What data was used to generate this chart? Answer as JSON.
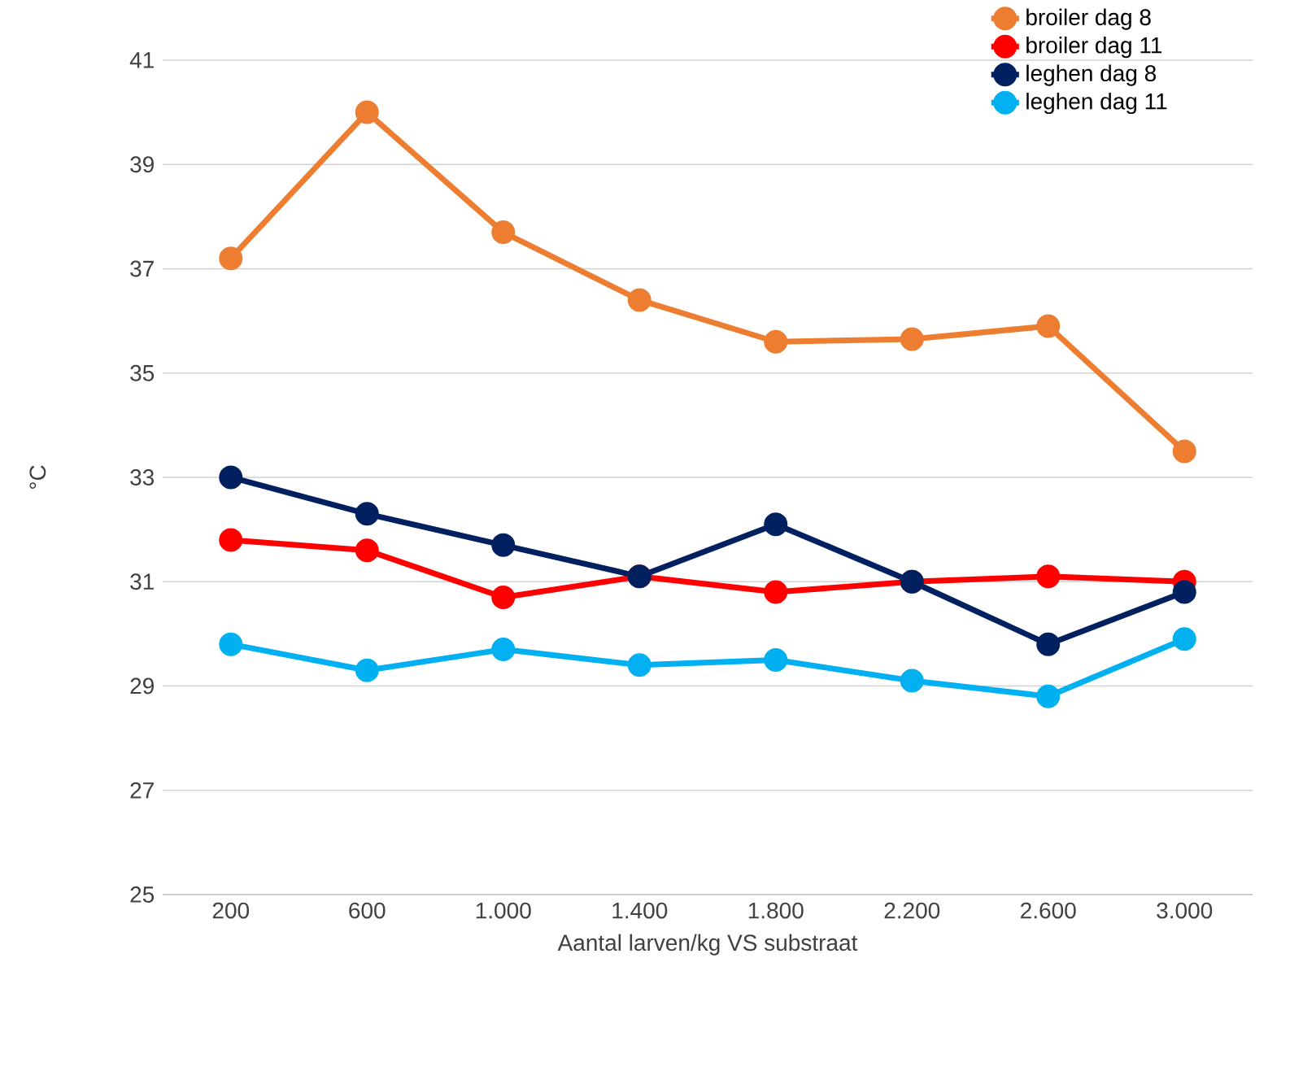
{
  "chart_data": {
    "type": "line",
    "xlabel": "Aantal larven/kg VS substraat",
    "ylabel": "°C",
    "categories": [
      "200",
      "600",
      "1.000",
      "1.400",
      "1.800",
      "2.200",
      "2.600",
      "3.000"
    ],
    "series": [
      {
        "name": "broiler dag 8",
        "color": "#ed7d31",
        "values": [
          37.2,
          40.0,
          37.7,
          36.4,
          35.6,
          35.65,
          35.9,
          33.5
        ]
      },
      {
        "name": "broiler dag 11",
        "color": "#ff0000",
        "values": [
          31.8,
          31.6,
          30.7,
          31.1,
          30.8,
          31.0,
          31.1,
          31.0
        ]
      },
      {
        "name": "leghen dag 8",
        "color": "#002060",
        "values": [
          33.0,
          32.3,
          31.7,
          31.1,
          32.1,
          31.0,
          29.8,
          30.8
        ]
      },
      {
        "name": "leghen dag 11",
        "color": "#00b0f0",
        "values": [
          29.8,
          29.3,
          29.7,
          29.4,
          29.5,
          29.1,
          28.8,
          29.9
        ]
      }
    ],
    "ylim": [
      25,
      41
    ],
    "yticks": [
      25,
      27,
      29,
      31,
      33,
      35,
      37,
      39,
      41
    ],
    "grid": "y",
    "legend": "top right",
    "marker": "circle",
    "line_style": "solid"
  }
}
